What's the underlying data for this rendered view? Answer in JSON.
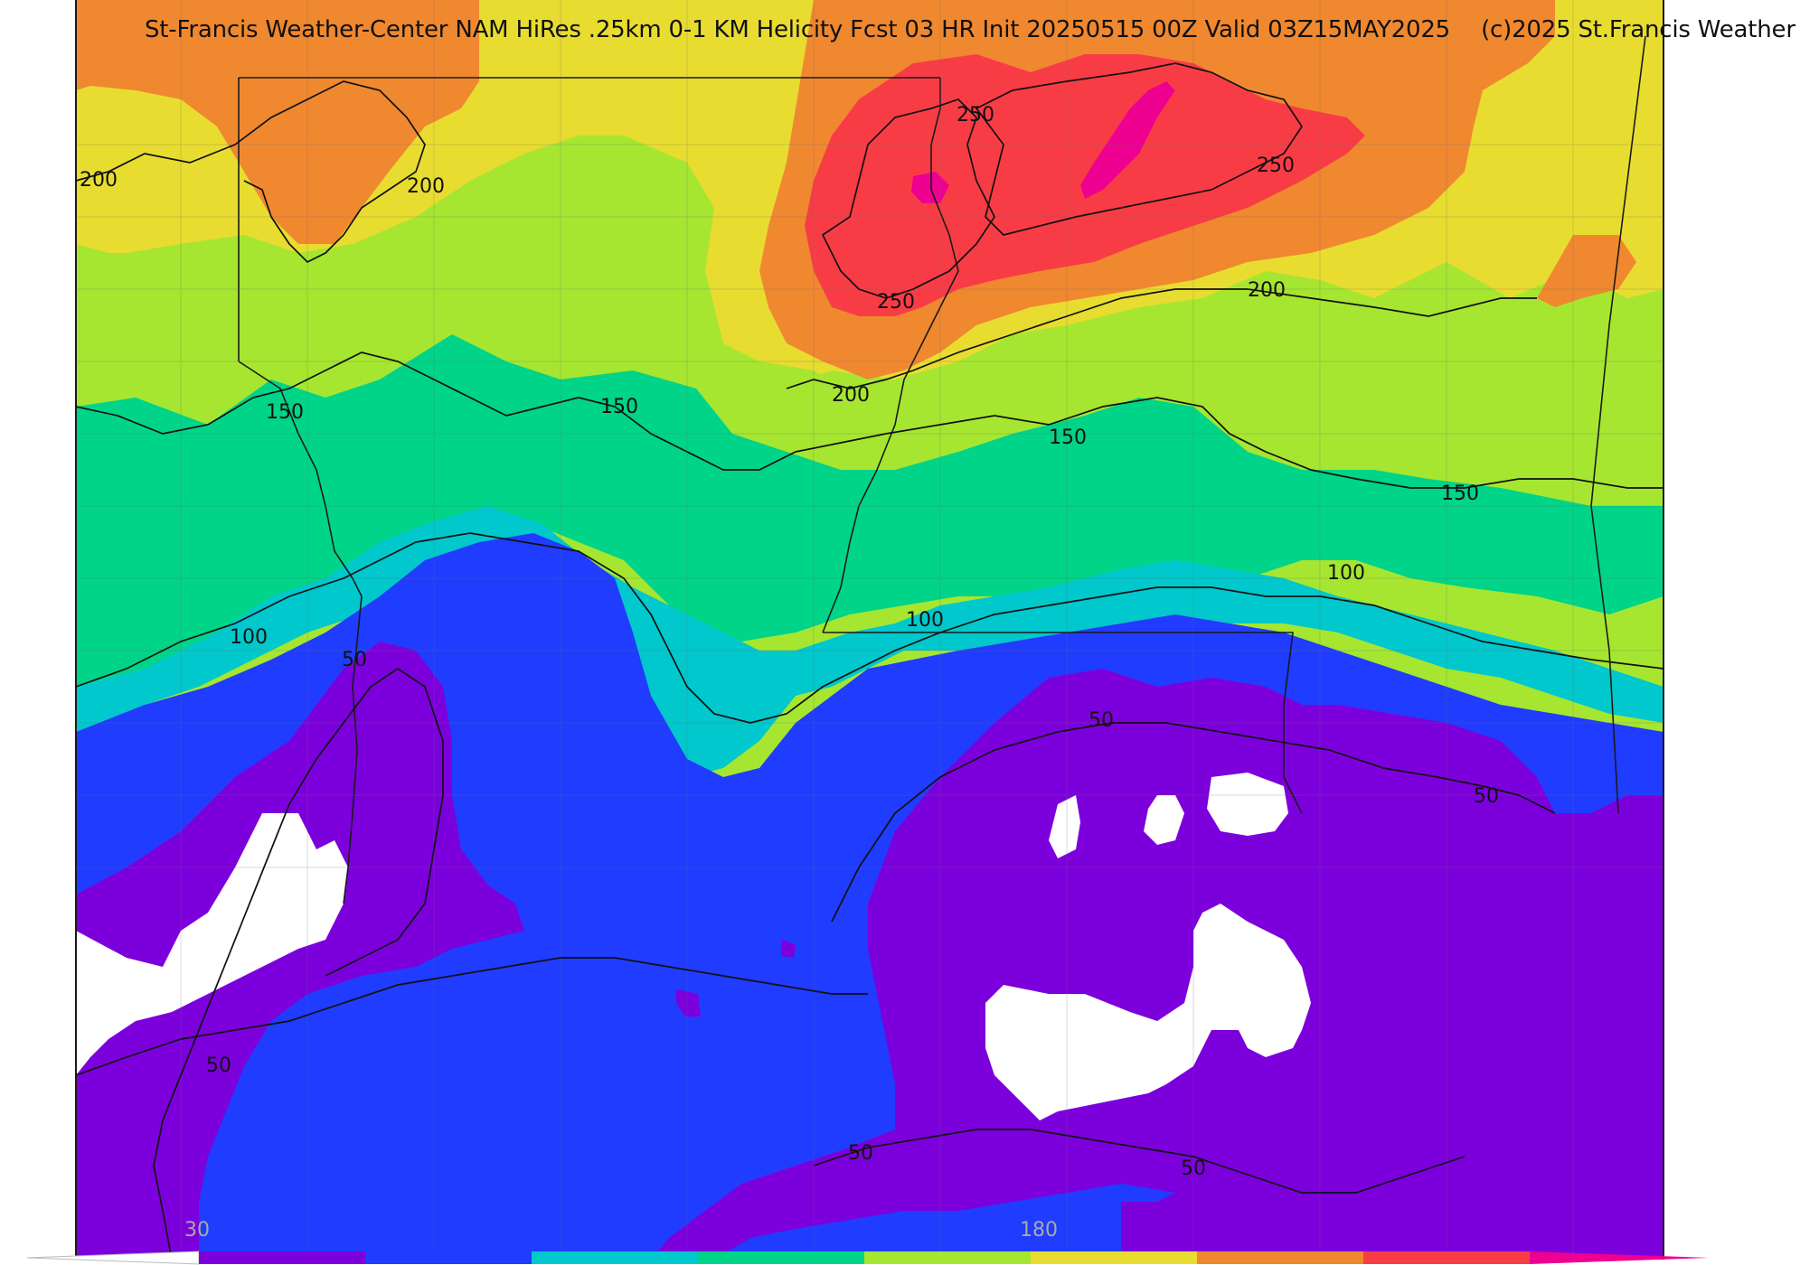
{
  "header": {
    "title": "St-Francis Weather-Center NAM HiRes .25km 0-1 KM Helicity Fcst 03 HR Init 20250515 00Z  Valid 03Z15MAY2025",
    "copyright": "(c)2025 St.Francis Weather"
  },
  "contour_labels": [
    "200",
    "200",
    "250",
    "250",
    "250",
    "200",
    "200",
    "150",
    "150",
    "150",
    "150",
    "100",
    "100",
    "100",
    "50",
    "50",
    "50",
    "50",
    "50",
    "50"
  ],
  "legend": {
    "ticks": [
      "30",
      "180"
    ],
    "colors": [
      "#8000e0",
      "#2040ff",
      "#00c8c8",
      "#00d488",
      "#a8e830",
      "#e8dc30",
      "#f08830",
      "#f83c46",
      "#f0008c"
    ]
  },
  "fill_colors": {
    "30_60": "#7c00dc",
    "60_90": "#203cff",
    "90_120": "#00c8cc",
    "120_150": "#00d488",
    "150_180": "#a6e630",
    "180_210": "#e8dc30",
    "210_240": "#f08830",
    "240_270": "#f83c46",
    "270_300": "#ee0090"
  }
}
